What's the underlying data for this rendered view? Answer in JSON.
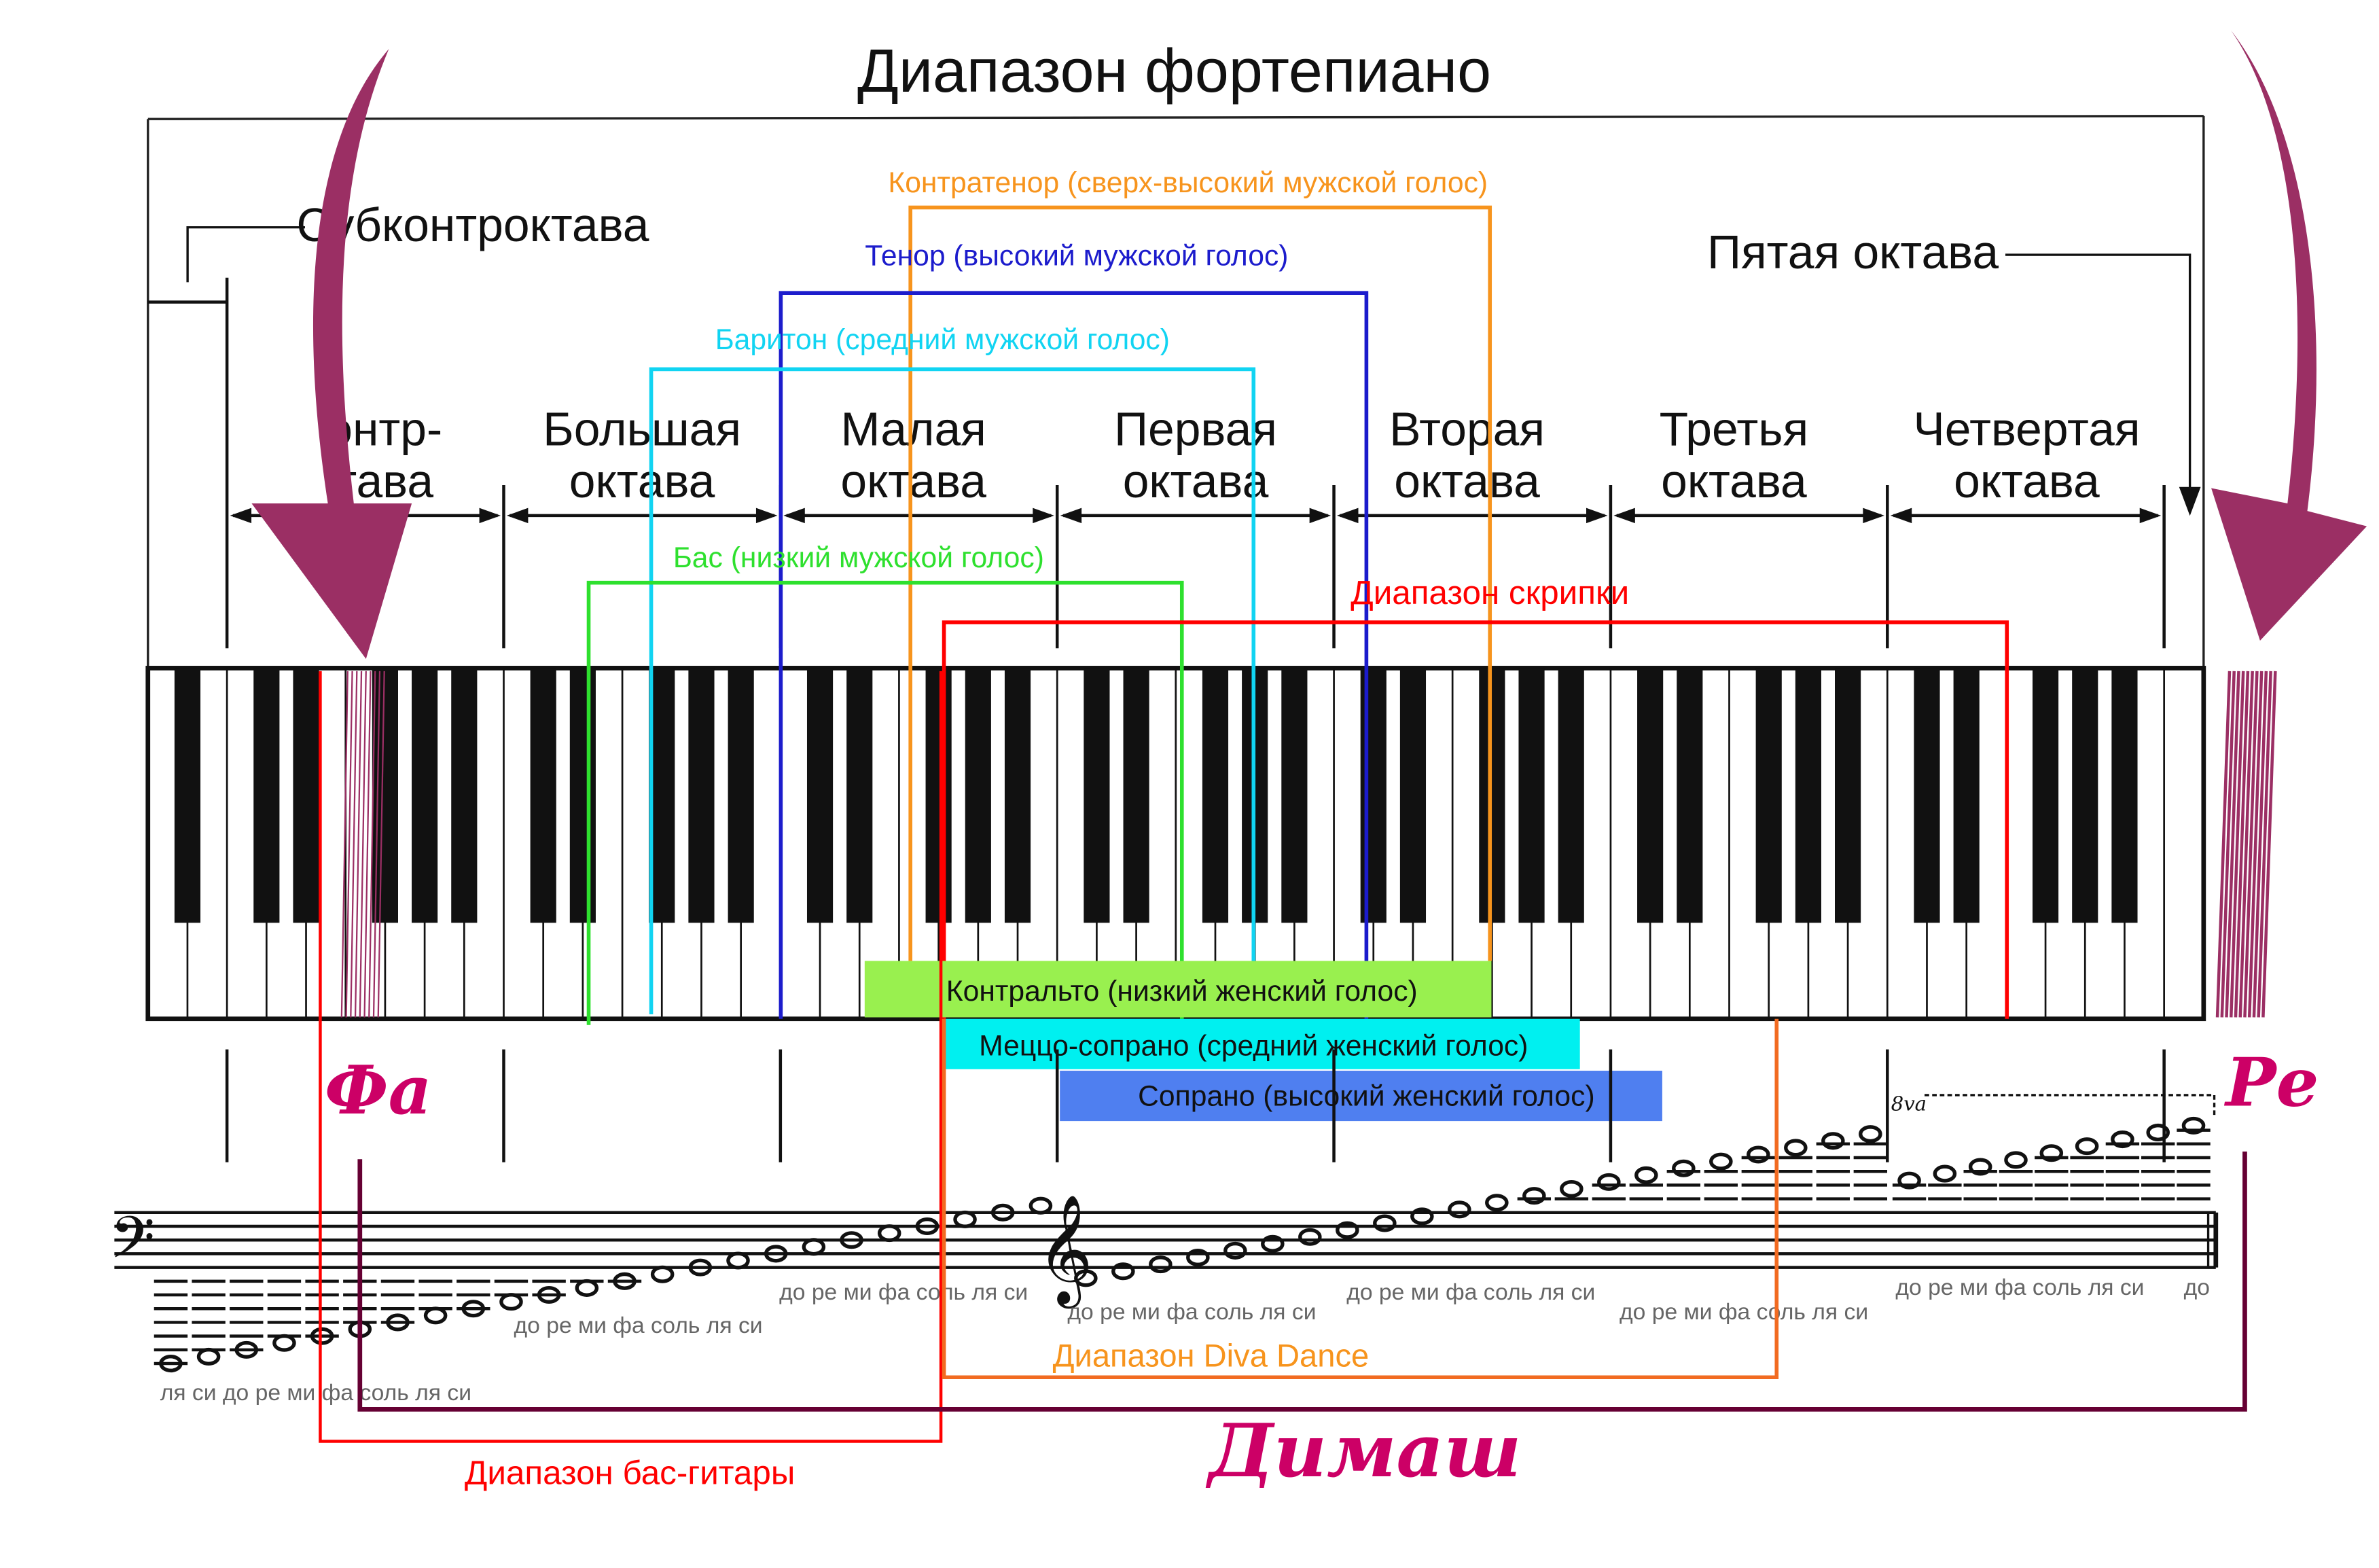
{
  "title": "Диапазон фортепиано",
  "octaves": {
    "subcontra": "Субконтроктава",
    "contra": [
      "онтр-",
      "тава"
    ],
    "great": [
      "Большая",
      "октава"
    ],
    "small": [
      "Малая",
      "октава"
    ],
    "first": [
      "Первая",
      "октава"
    ],
    "second": [
      "Вторая",
      "октава"
    ],
    "third": [
      "Третья",
      "октава"
    ],
    "fourth": [
      "Четвертая",
      "октава"
    ],
    "fifth": "Пятая октава"
  },
  "voices": {
    "countertenor": {
      "label": "Контратенор (сверх-высокий мужской голос)",
      "color": "#f7941d"
    },
    "tenor": {
      "label": "Тенор (высокий мужской голос)",
      "color": "#1c1ccc"
    },
    "baritone": {
      "label": "Баритон (средний мужской голос)",
      "color": "#11d4f2"
    },
    "bass": {
      "label": "Бас (низкий мужской голос)",
      "color": "#2ee02e"
    },
    "contralto": {
      "label": "Контральто (низкий женский голос)",
      "color": "#99f04f"
    },
    "mezzo": {
      "label": "Меццо-сопрано (средний женский голос)",
      "color": "#00f0f0"
    },
    "soprano": {
      "label": "Сопрано (высокий женский голос)",
      "color": "#4f7ff0"
    }
  },
  "instruments": {
    "violin": {
      "label": "Диапазон скрипки",
      "color": "#ff0000"
    },
    "bass_guitar": {
      "label": "Диапазон бас-гитары",
      "color": "#ff0000"
    },
    "diva_dance": {
      "label": "Диапазон Diva Dance",
      "color": "#f7941d"
    },
    "dimash": {
      "label": "Димаш",
      "color": "#cc0066",
      "line_color": "#660033"
    }
  },
  "range_marks": {
    "low": "Фа",
    "high": "Ре",
    "ottava": "8va",
    "arrow_color": "#9b2f64"
  },
  "note_rows": [
    "ля си  до ре ми фа соль ля си",
    "до ре ми фа соль ля си",
    "до ре ми фа соль ля си",
    "до ре ми фа соль ля си",
    "до ре ми фа соль ля си",
    "до ре ми фа соль ля си",
    "до ре ми фа соль ля си",
    "до"
  ]
}
